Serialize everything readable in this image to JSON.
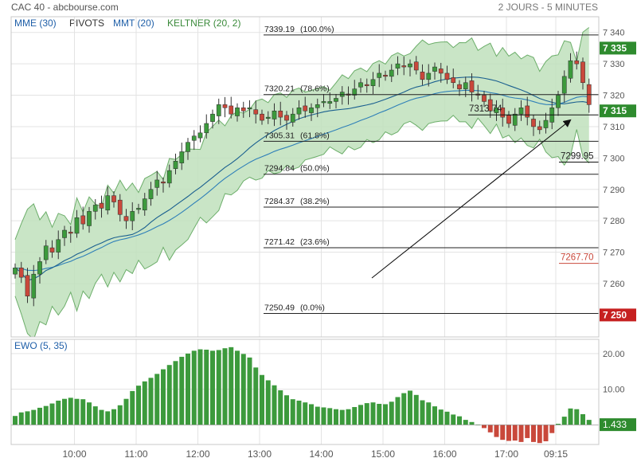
{
  "header": {
    "title": "CAC 40 - abcbourse.com",
    "period": "2 JOURS - 5 MINUTES"
  },
  "legend": [
    {
      "label": "MME (30)",
      "color": "#1f5fa8"
    },
    {
      "label": "PIVOTS",
      "color": "#333333"
    },
    {
      "label": "MMT (20)",
      "color": "#1f5fa8"
    },
    {
      "label": "KELTNER (20, 2)",
      "color": "#3a8a3a"
    }
  ],
  "colors": {
    "up": "#3c9a3c",
    "down": "#c9483b",
    "keltner_fill": "#bfe0bc",
    "keltner_line": "#6cae6a",
    "ma_line": "#2e7fb8",
    "fib_line": "#222222",
    "arrow": "#111111",
    "grid": "#e3e3e3"
  },
  "chart_data": [
    {
      "type": "candlestick",
      "title": "CAC 40 - abcbourse.com",
      "ylim": [
        7243,
        7345
      ],
      "yticks": [
        "7 260",
        "7 270",
        "7 280",
        "7 290",
        "7 300",
        "7 310",
        "7 320",
        "7 330",
        "7 340"
      ],
      "ytick_values": [
        7260,
        7270,
        7280,
        7290,
        7300,
        7310,
        7320,
        7330,
        7340
      ],
      "xticks": [
        "10:00",
        "11:00",
        "12:00",
        "13:00",
        "14:00",
        "15:00",
        "16:00",
        "17:00",
        "09:15"
      ],
      "xtick_index": [
        10,
        20,
        30,
        40,
        50,
        60,
        70,
        80,
        88
      ],
      "n_candles": 94,
      "fib_levels": [
        {
          "label": "7339.19",
          "pct": "(100.0%)",
          "value": 7339.19
        },
        {
          "label": "7320.21",
          "pct": "(78.6%)",
          "value": 7320.21
        },
        {
          "label": "7305.31",
          "pct": "(61.8%)",
          "value": 7305.31
        },
        {
          "label": "7294.84",
          "pct": "(50.0%)",
          "value": 7294.84
        },
        {
          "label": "7284.37",
          "pct": "(38.2%)",
          "value": 7284.37
        },
        {
          "label": "7271.42",
          "pct": "(23.6%)",
          "value": 7271.42
        },
        {
          "label": "7250.49",
          "pct": "(0.0%)",
          "value": 7250.49
        }
      ],
      "annotations": [
        {
          "text": "7313.74",
          "value": 7313.74
        },
        {
          "text": "7299.95",
          "value": 7299.95
        },
        {
          "text": "7267.70",
          "value": 7267.7,
          "color": "#c9483b"
        }
      ],
      "price_tags": [
        {
          "text": "7 335",
          "value": 7335,
          "color": "#2e8b2e"
        },
        {
          "text": "7 315",
          "value": 7315,
          "color": "#2e8b2e"
        },
        {
          "text": "7 250",
          "value": 7250,
          "color": "#c62020"
        }
      ],
      "closes": [
        7265,
        7262,
        7256,
        7263,
        7267,
        7272,
        7270,
        7274,
        7277,
        7276,
        7281,
        7279,
        7283,
        7285,
        7284,
        7288,
        7286,
        7282,
        7280,
        7283,
        7284,
        7287,
        7290,
        7293,
        7292,
        7296,
        7299,
        7302,
        7305,
        7307,
        7308,
        7311,
        7314,
        7317,
        7316,
        7314,
        7316,
        7315,
        7316,
        7314,
        7312,
        7313,
        7315,
        7313,
        7312,
        7314,
        7316,
        7315,
        7316,
        7317,
        7318,
        7318,
        7319,
        7321,
        7320,
        7322,
        7324,
        7323,
        7325,
        7327,
        7326,
        7328,
        7330,
        7329,
        7330,
        7328,
        7325,
        7327,
        7329,
        7327,
        7325,
        7324,
        7322,
        7324,
        7321,
        7320,
        7318,
        7315,
        7316,
        7313,
        7311,
        7314,
        7316,
        7313,
        7310,
        7309,
        7312,
        7316,
        7320,
        7326,
        7331,
        7330,
        7324,
        7317
      ],
      "ewo": {
        "name": "EWO (5, 35)",
        "yticks": [
          "20.00",
          "10.00"
        ],
        "ytick_values": [
          20,
          10
        ],
        "ylim": [
          -5.5,
          24
        ],
        "last_value": "1.433",
        "values": [
          2.5,
          3.5,
          3.8,
          4.2,
          4.8,
          5.3,
          6,
          6.8,
          7.3,
          7.6,
          7.3,
          7.2,
          6.3,
          5.2,
          4.2,
          3.8,
          4.4,
          5.5,
          7.3,
          9.5,
          11,
          12.2,
          13.2,
          14.3,
          15.6,
          16.8,
          17.9,
          19.1,
          20,
          20.8,
          21.2,
          21.1,
          20.8,
          21,
          21.5,
          21.8,
          20.8,
          19.9,
          18.9,
          16.1,
          14,
          12.5,
          11.1,
          9.7,
          8.3,
          7.2,
          6.8,
          6.3,
          5.8,
          5.1,
          4.9,
          4.7,
          4.4,
          4.2,
          4.4,
          5,
          5.6,
          6.1,
          6.3,
          5.9,
          5.8,
          6.5,
          7.8,
          8.9,
          9.6,
          8.4,
          6.9,
          6.3,
          5.2,
          4.3,
          3.7,
          2.9,
          2.4,
          1.4,
          0.8,
          0.1,
          -0.9,
          -2.1,
          -3.4,
          -4.2,
          -4.5,
          -4.4,
          -4.8,
          -3.7,
          -4.8,
          -5.1,
          -4.6,
          -2.3,
          0.3,
          2.3,
          4.6,
          4.4,
          3,
          1.4
        ]
      }
    }
  ]
}
